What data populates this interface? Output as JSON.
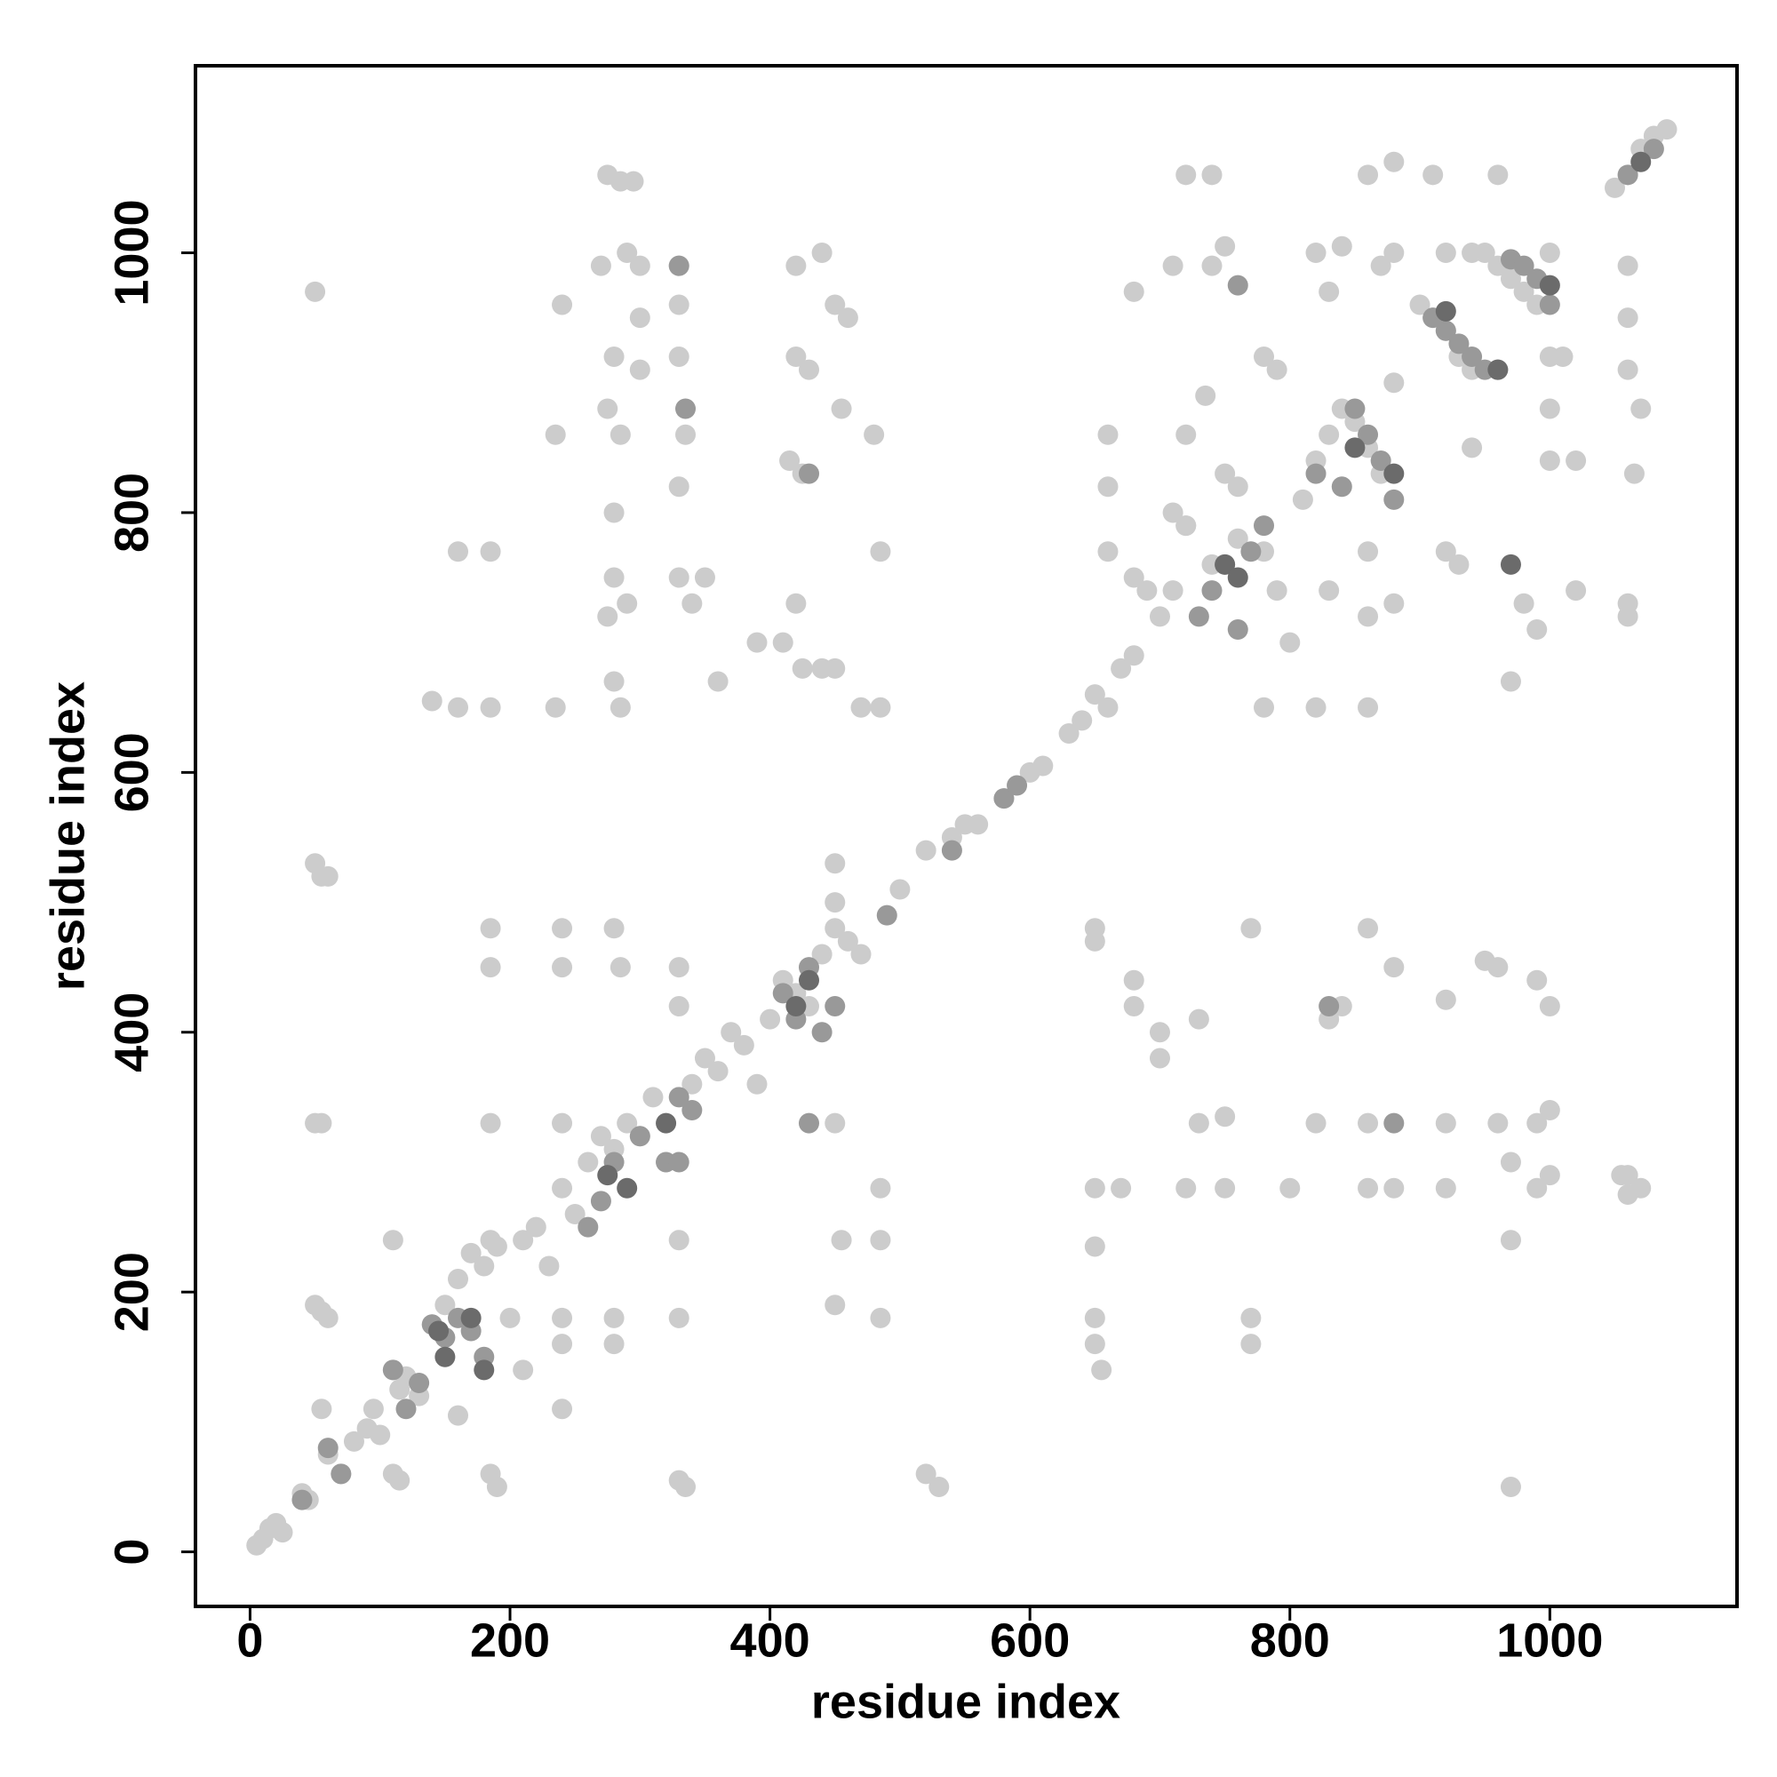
{
  "chart_data": {
    "type": "scatter",
    "xlabel": "residue index",
    "ylabel": "residue index",
    "xlim": [
      -42,
      1144
    ],
    "ylim": [
      -42,
      1144
    ],
    "xticks": [
      0,
      200,
      400,
      600,
      800,
      1000
    ],
    "yticks": [
      0,
      200,
      400,
      600,
      800,
      1000
    ],
    "grid": false,
    "series": [
      {
        "color": "#cccccc",
        "x": [
          5,
          10,
          15,
          20,
          25,
          40,
          45,
          55,
          60,
          70,
          80,
          90,
          95,
          100,
          110,
          115,
          120,
          130,
          140,
          150,
          160,
          170,
          180,
          190,
          200,
          210,
          220,
          230,
          240,
          250,
          260,
          270,
          280,
          290,
          300,
          310,
          320,
          340,
          350,
          360,
          370,
          380,
          390,
          400,
          410,
          420,
          430,
          440,
          450,
          460,
          470,
          500,
          520,
          540,
          550,
          560,
          580,
          600,
          610,
          630,
          640,
          650,
          660,
          670,
          680,
          700,
          710,
          720,
          740,
          760,
          780,
          790,
          800,
          810,
          820,
          830,
          840,
          850,
          860,
          870,
          880,
          900,
          910,
          920,
          930,
          940,
          950,
          960,
          970,
          980,
          990,
          1000,
          1050,
          1060,
          1070,
          1080,
          1090,
          275,
          285,
          295,
          270,
          290,
          300,
          280,
          275,
          285,
          280,
          280,
          275,
          290,
          280,
          285,
          330,
          330,
          330,
          335,
          330,
          330,
          340,
          350,
          440,
          420,
          450,
          460,
          420,
          430,
          455,
          415,
          425,
          420,
          425,
          440,
          450,
          470,
          390,
          410,
          360,
          480,
          485,
          485,
          160,
          185,
          160,
          185,
          140,
          235,
          240,
          235,
          50,
          300,
          300,
          1060,
          1055,
          990,
          1000,
          920,
          880,
          860,
          800,
          750,
          720,
          670,
          650,
          990,
          960,
          920,
          860,
          820,
          750,
          730,
          1000,
          990,
          960,
          950,
          920,
          880,
          840,
          830,
          730,
          680,
          680,
          650,
          700,
          700,
          860,
          770,
          650,
          650,
          650,
          650,
          655,
          770,
          770,
          970,
          1000,
          970,
          1060,
          1070,
          970,
          50,
          55,
          60,
          50,
          55,
          50,
          55,
          60,
          185,
          185,
          185,
          185,
          185,
          190,
          240,
          240,
          240,
          240,
          240,
          240,
          280,
          285,
          280,
          280,
          330,
          330,
          330,
          330,
          330,
          335,
          450,
          450,
          450,
          455,
          450,
          485,
          485,
          485,
          520,
          530,
          110,
          110,
          115,
          210,
          160,
          720,
          740,
          750,
          680,
          710,
          740,
          735,
          720,
          750,
          780,
          790,
          760,
          820,
          840,
          830,
          880,
          860,
          910,
          960,
          920,
          940,
          870,
          880,
          1000,
          1010,
          1000,
          1000,
          1020,
          1060,
          1060,
          1060,
          1070,
          1065,
          1060,
          1060,
          980,
          990,
          970,
          1020,
          920,
          930,
          940,
          860,
          860,
          880,
          830,
          820,
          860,
          780,
          660,
          660,
          660,
          710,
          720,
          690,
          680
        ],
        "values": [
          5,
          10,
          18,
          22,
          15,
          45,
          40,
          110,
          75,
          60,
          85,
          95,
          110,
          90,
          140,
          125,
          135,
          120,
          175,
          190,
          210,
          230,
          220,
          235,
          180,
          240,
          250,
          220,
          280,
          260,
          300,
          320,
          310,
          330,
          320,
          350,
          300,
          360,
          380,
          370,
          400,
          390,
          360,
          410,
          440,
          430,
          420,
          460,
          480,
          470,
          460,
          510,
          540,
          550,
          560,
          560,
          580,
          600,
          605,
          630,
          640,
          660,
          650,
          680,
          690,
          720,
          740,
          790,
          760,
          780,
          770,
          740,
          700,
          810,
          840,
          860,
          880,
          870,
          850,
          830,
          900,
          960,
          950,
          940,
          920,
          910,
          1000,
          990,
          980,
          970,
          960,
          920,
          1050,
          1060,
          1080,
          1090,
          1095,
          1060,
          1055,
          1055,
          990,
          1000,
          990,
          920,
          880,
          860,
          800,
          750,
          720,
          730,
          670,
          650,
          990,
          960,
          920,
          860,
          820,
          750,
          730,
          750,
          1000,
          990,
          960,
          950,
          920,
          910,
          880,
          840,
          830,
          730,
          680,
          680,
          680,
          650,
          700,
          700,
          670,
          860,
          770,
          650,
          770,
          770,
          650,
          650,
          655,
          650,
          960,
          860,
          970,
          950,
          910,
          275,
          290,
          280,
          290,
          280,
          280,
          280,
          280,
          280,
          280,
          280,
          280,
          330,
          330,
          330,
          330,
          330,
          335,
          330,
          420,
          440,
          450,
          455,
          425,
          450,
          420,
          410,
          410,
          420,
          440,
          470,
          400,
          380,
          480,
          480,
          480,
          235,
          180,
          160,
          140,
          180,
          160,
          50,
          340,
          240,
          290,
          280,
          300,
          530,
          520,
          520,
          330,
          330,
          190,
          185,
          180,
          480,
          450,
          330,
          240,
          60,
          50,
          480,
          450,
          330,
          180,
          160,
          110,
          480,
          450,
          180,
          160,
          450,
          420,
          240,
          180,
          55,
          50,
          530,
          500,
          330,
          240,
          190,
          280,
          240,
          180,
          60,
          50,
          240,
          60,
          55,
          140,
          105,
          1060,
          1060,
          1005,
          970,
          990,
          990,
          890,
          860,
          830,
          920,
          910,
          820,
          1000,
          1005,
          970,
          1070,
          1060,
          1060,
          1060,
          1000,
          1000,
          990,
          1000,
          1000,
          920,
          880,
          840,
          840,
          990,
          950,
          910,
          880,
          830,
          730,
          720,
          730,
          710,
          670,
          740,
          770,
          760,
          850,
          770,
          720,
          730,
          740,
          650,
          650,
          650,
          860,
          820,
          770,
          800,
          790,
          740,
          750
        ]
      },
      {
        "color": "#999999",
        "x": [
          140,
          150,
          160,
          170,
          180,
          130,
          120,
          110,
          270,
          260,
          280,
          300,
          320,
          330,
          340,
          410,
          420,
          430,
          440,
          450,
          330,
          335,
          430,
          730,
          740,
          750,
          760,
          770,
          780,
          820,
          840,
          850,
          860,
          870,
          880,
          910,
          920,
          930,
          940,
          950,
          960,
          970,
          980,
          990,
          1000,
          1060,
          1080,
          580,
          590,
          540,
          490,
          70,
          60,
          40,
          830,
          880,
          430,
          330,
          760
        ],
        "values": [
          175,
          165,
          180,
          170,
          150,
          130,
          110,
          140,
          270,
          250,
          300,
          320,
          300,
          350,
          340,
          430,
          410,
          450,
          400,
          420,
          990,
          880,
          830,
          720,
          740,
          760,
          710,
          770,
          790,
          830,
          820,
          880,
          860,
          840,
          810,
          950,
          940,
          930,
          920,
          910,
          910,
          995,
          990,
          980,
          960,
          1060,
          1080,
          580,
          590,
          540,
          490,
          60,
          80,
          40,
          420,
          330,
          330,
          300,
          975
        ]
      },
      {
        "color": "#6b6b6b",
        "x": [
          170,
          150,
          145,
          180,
          275,
          320,
          420,
          430,
          750,
          760,
          880,
          850,
          920,
          960,
          1000,
          1070,
          970,
          290
        ],
        "values": [
          180,
          150,
          170,
          140,
          290,
          330,
          420,
          440,
          760,
          750,
          830,
          850,
          955,
          910,
          975,
          1070,
          760,
          280
        ]
      }
    ]
  }
}
